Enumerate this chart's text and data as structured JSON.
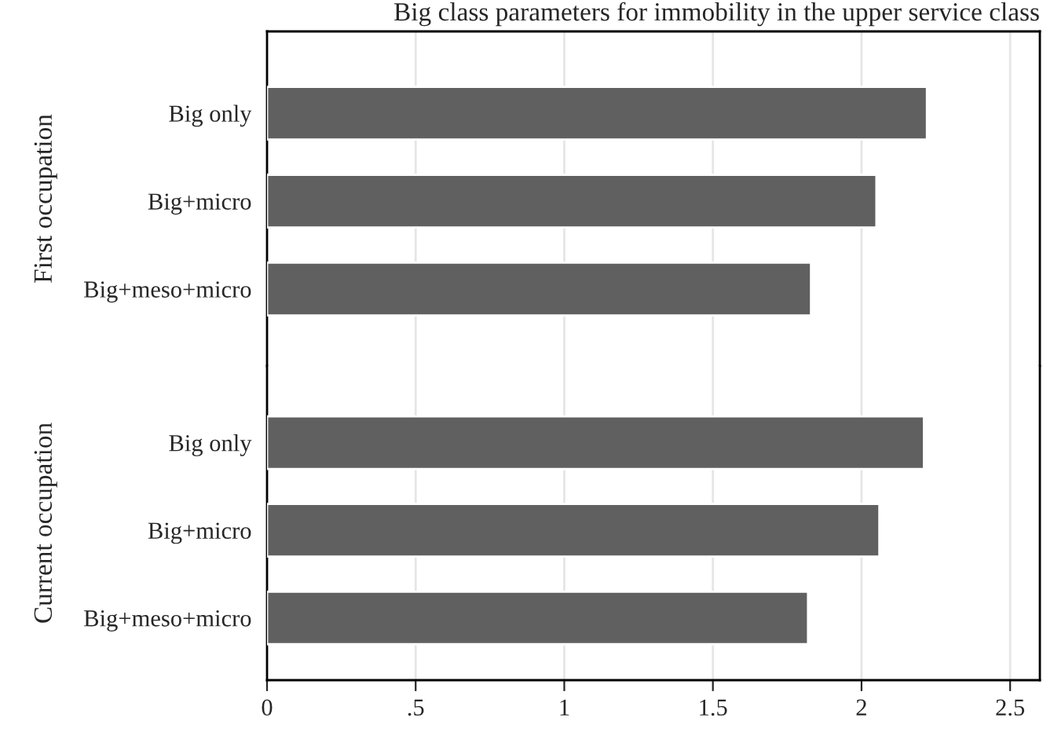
{
  "chart_data": [
    {
      "type": "bar",
      "orientation": "horizontal",
      "title": "Big class parameters for immobility in the upper service class",
      "ylabel": "First occupation",
      "categories": [
        "Big only",
        "Big+micro",
        "Big+meso+micro"
      ],
      "values": [
        2.22,
        2.05,
        1.83
      ],
      "color": "#606060",
      "xlim": [
        0,
        2.6
      ],
      "grid": "x",
      "tick_labels": "y"
    },
    {
      "type": "bar",
      "orientation": "horizontal",
      "ylabel": "Current occupation",
      "categories": [
        "Big only",
        "Big+micro",
        "Big+meso+micro"
      ],
      "values": [
        2.21,
        2.06,
        1.82
      ],
      "color": "#606060",
      "xlim": [
        0,
        2.6
      ],
      "xticks": [
        0,
        {
          "value": 0.5,
          "label": ".5"
        },
        1,
        1.5,
        2,
        2.5
      ],
      "grid": "x"
    }
  ]
}
